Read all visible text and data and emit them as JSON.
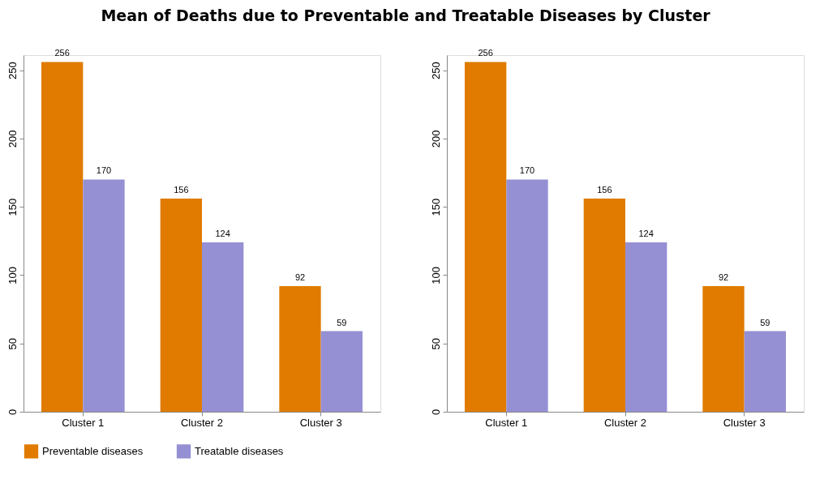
{
  "chart_data": [
    {
      "type": "bar",
      "title": "Mean of Deaths due to Preventable and Treatable Diseases by Cluster",
      "categories": [
        "Cluster 1",
        "Cluster 2",
        "Cluster 3"
      ],
      "series": [
        {
          "name": "Preventable diseases",
          "color": "#e07b00",
          "values": [
            256,
            156,
            92
          ]
        },
        {
          "name": "Treatable diseases",
          "color": "#9590d3",
          "values": [
            170,
            124,
            59
          ]
        }
      ],
      "ylim": [
        0,
        261
      ],
      "yticks": [
        0,
        50,
        100,
        150,
        200,
        250
      ],
      "data_labels": true,
      "grid": false,
      "legend": "bottom"
    },
    {
      "type": "bar",
      "categories": [
        "Cluster 1",
        "Cluster 2",
        "Cluster 3"
      ],
      "series": [
        {
          "name": "Preventable diseases",
          "color": "#e07b00",
          "values": [
            256,
            156,
            92
          ]
        },
        {
          "name": "Treatable diseases",
          "color": "#9590d3",
          "values": [
            170,
            124,
            59
          ]
        }
      ],
      "ylim": [
        0,
        261
      ],
      "yticks": [
        0,
        50,
        100,
        150,
        200,
        250
      ],
      "data_labels": true,
      "grid": false,
      "legend": "bottom"
    }
  ]
}
